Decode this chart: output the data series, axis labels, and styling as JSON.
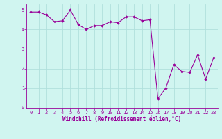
{
  "x": [
    0,
    1,
    2,
    3,
    4,
    5,
    6,
    7,
    8,
    9,
    10,
    11,
    12,
    13,
    14,
    15,
    16,
    17,
    18,
    19,
    20,
    21,
    22,
    23
  ],
  "y": [
    4.9,
    4.9,
    4.75,
    4.4,
    4.45,
    5.0,
    4.25,
    4.0,
    4.2,
    4.2,
    4.4,
    4.35,
    4.65,
    4.65,
    4.45,
    4.5,
    0.45,
    1.0,
    2.2,
    1.85,
    1.8,
    2.7,
    1.45,
    2.55
  ],
  "line_color": "#990099",
  "marker": "D",
  "markersize": 1.8,
  "linewidth": 0.8,
  "xlabel": "Windchill (Refroidissement éolien,°C)",
  "xlabel_fontsize": 5.5,
  "xlabel_color": "#990099",
  "background_color": "#d0f5f0",
  "grid_color": "#b0e0dc",
  "tick_color": "#990099",
  "tick_fontsize": 5.0,
  "ylim": [
    -0.05,
    5.3
  ],
  "xlim": [
    -0.5,
    23.5
  ],
  "yticks": [
    0,
    1,
    2,
    3,
    4,
    5
  ],
  "xticks": [
    0,
    1,
    2,
    3,
    4,
    5,
    6,
    7,
    8,
    9,
    10,
    11,
    12,
    13,
    14,
    15,
    16,
    17,
    18,
    19,
    20,
    21,
    22,
    23
  ]
}
